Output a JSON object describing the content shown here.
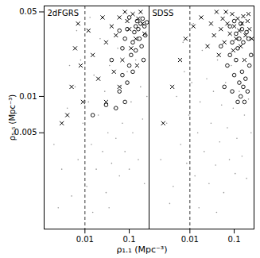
{
  "chart_data": [
    {
      "type": "scatter",
      "title": "2dFGRS",
      "x_label": "ρ₁.₁ (Mpc⁻³)",
      "y_label": "ρ₅.₅ (Mpc⁻³)",
      "log": true,
      "xlim": [
        0.0012,
        0.28
      ],
      "xticks": [
        0.01,
        0.1
      ],
      "ylim": [
        0.0008,
        0.056
      ],
      "yticks": [
        0.005,
        0.01,
        0.05
      ],
      "reference_line": {
        "x": 0.01,
        "line_style": "dashed"
      },
      "series": [
        {
          "marker": "dot",
          "color": "#999999",
          "x": [
            0.002,
            0.003,
            0.004,
            0.005,
            0.006,
            0.007,
            0.008,
            0.009,
            0.011,
            0.012,
            0.014,
            0.016,
            0.018,
            0.02,
            0.022,
            0.025,
            0.028,
            0.03,
            0.033,
            0.036,
            0.04,
            0.045,
            0.05,
            0.055,
            0.06,
            0.065,
            0.07,
            0.08,
            0.09,
            0.1,
            0.11,
            0.12,
            0.14,
            0.16,
            0.18,
            0.2,
            0.22,
            0.25,
            0.0025,
            0.015,
            0.035,
            0.0045,
            0.0065,
            0.013
          ],
          "y": [
            0.004,
            0.0025,
            0.008,
            0.0015,
            0.012,
            0.003,
            0.02,
            0.006,
            0.0018,
            0.009,
            0.004,
            0.015,
            0.0025,
            0.007,
            0.03,
            0.0035,
            0.011,
            0.0016,
            0.005,
            0.018,
            0.0028,
            0.008,
            0.0045,
            0.025,
            0.0022,
            0.012,
            0.006,
            0.0035,
            0.016,
            0.0025,
            0.009,
            0.005,
            0.02,
            0.003,
            0.012,
            0.0065,
            0.0019,
            0.01,
            0.0012,
            0.0011,
            0.0012,
            0.018,
            0.035,
            0.045
          ]
        },
        {
          "marker": "x",
          "color": "#000000",
          "x": [
            0.003,
            0.004,
            0.005,
            0.006,
            0.007,
            0.008,
            0.009,
            0.012,
            0.015,
            0.02,
            0.025,
            0.03,
            0.04,
            0.05,
            0.06,
            0.07,
            0.08,
            0.09,
            0.1,
            0.12,
            0.14,
            0.16,
            0.18,
            0.2,
            0.22,
            0.06,
            0.11,
            0.15,
            0.03,
            0.045
          ],
          "y": [
            0.006,
            0.007,
            0.012,
            0.025,
            0.04,
            0.018,
            0.009,
            0.035,
            0.022,
            0.014,
            0.045,
            0.028,
            0.038,
            0.032,
            0.045,
            0.02,
            0.05,
            0.042,
            0.036,
            0.048,
            0.03,
            0.044,
            0.05,
            0.04,
            0.033,
            0.012,
            0.025,
            0.018,
            0.009,
            0.016
          ]
        },
        {
          "marker": "circle",
          "color": "#000000",
          "x": [
            0.05,
            0.06,
            0.07,
            0.08,
            0.09,
            0.1,
            0.11,
            0.12,
            0.13,
            0.14,
            0.15,
            0.16,
            0.18,
            0.2,
            0.22,
            0.25,
            0.12,
            0.14,
            0.17,
            0.19,
            0.08,
            0.09,
            0.1,
            0.07,
            0.23,
            0.03,
            0.04,
            0.015,
            0.06,
            0.21
          ],
          "y": [
            0.008,
            0.011,
            0.015,
            0.009,
            0.013,
            0.018,
            0.022,
            0.028,
            0.034,
            0.038,
            0.042,
            0.036,
            0.04,
            0.044,
            0.038,
            0.041,
            0.016,
            0.024,
            0.03,
            0.026,
            0.03,
            0.036,
            0.045,
            0.025,
            0.032,
            0.0085,
            0.02,
            0.007,
            0.035,
            0.02
          ]
        }
      ]
    },
    {
      "type": "scatter",
      "title": "SDSS",
      "log": true,
      "tick_labels": "x",
      "xlim": [
        0.0012,
        0.28
      ],
      "xticks": [
        0.01,
        0.1
      ],
      "ylim": [
        0.0008,
        0.056
      ],
      "yticks": [
        0.005,
        0.01,
        0.05
      ],
      "reference_line": {
        "x": 0.01,
        "line_style": "dashed"
      },
      "series": [
        {
          "marker": "dot",
          "color": "#999999",
          "x": [
            0.0022,
            0.003,
            0.0042,
            0.005,
            0.0062,
            0.0075,
            0.0085,
            0.0095,
            0.011,
            0.013,
            0.015,
            0.017,
            0.019,
            0.021,
            0.024,
            0.027,
            0.03,
            0.034,
            0.038,
            0.042,
            0.047,
            0.052,
            0.058,
            0.064,
            0.07,
            0.078,
            0.086,
            0.095,
            0.105,
            0.115,
            0.13,
            0.15,
            0.17,
            0.19,
            0.21,
            0.24,
            0.0035,
            0.016,
            0.04,
            0.007,
            0.012
          ],
          "y": [
            0.003,
            0.006,
            0.0018,
            0.01,
            0.004,
            0.016,
            0.0028,
            0.007,
            0.013,
            0.0022,
            0.005,
            0.009,
            0.024,
            0.0035,
            0.014,
            0.0019,
            0.006,
            0.011,
            0.0027,
            0.02,
            0.0042,
            0.0085,
            0.0016,
            0.013,
            0.0055,
            0.003,
            0.018,
            0.008,
            0.0023,
            0.0045,
            0.011,
            0.0032,
            0.007,
            0.0021,
            0.0095,
            0.005,
            0.0013,
            0.0012,
            0.0011,
            0.028,
            0.04
          ]
        },
        {
          "marker": "x",
          "color": "#000000",
          "x": [
            0.0025,
            0.004,
            0.006,
            0.008,
            0.012,
            0.018,
            0.025,
            0.03,
            0.035,
            0.04,
            0.045,
            0.05,
            0.055,
            0.06,
            0.07,
            0.08,
            0.09,
            0.1,
            0.11,
            0.12,
            0.13,
            0.14,
            0.15,
            0.16,
            0.18,
            0.2,
            0.22,
            0.25,
            0.065,
            0.095,
            0.17,
            0.21
          ],
          "y": [
            0.006,
            0.012,
            0.02,
            0.03,
            0.038,
            0.045,
            0.026,
            0.04,
            0.032,
            0.05,
            0.022,
            0.036,
            0.044,
            0.028,
            0.04,
            0.033,
            0.048,
            0.038,
            0.03,
            0.044,
            0.035,
            0.026,
            0.04,
            0.046,
            0.032,
            0.042,
            0.036,
            0.03,
            0.05,
            0.024,
            0.02,
            0.048
          ]
        },
        {
          "marker": "circle",
          "color": "#000000",
          "x": [
            0.06,
            0.07,
            0.08,
            0.09,
            0.1,
            0.11,
            0.12,
            0.13,
            0.14,
            0.15,
            0.16,
            0.17,
            0.18,
            0.2,
            0.22,
            0.09,
            0.11,
            0.13,
            0.15,
            0.1,
            0.12,
            0.14,
            0.16,
            0.19,
            0.21,
            0.08,
            0.05,
            0.24
          ],
          "y": [
            0.012,
            0.018,
            0.022,
            0.011,
            0.015,
            0.02,
            0.009,
            0.013,
            0.01,
            0.016,
            0.012,
            0.009,
            0.014,
            0.011,
            0.018,
            0.028,
            0.033,
            0.03,
            0.036,
            0.042,
            0.025,
            0.04,
            0.028,
            0.034,
            0.03,
            0.038,
            0.026,
            0.022
          ]
        }
      ]
    }
  ]
}
